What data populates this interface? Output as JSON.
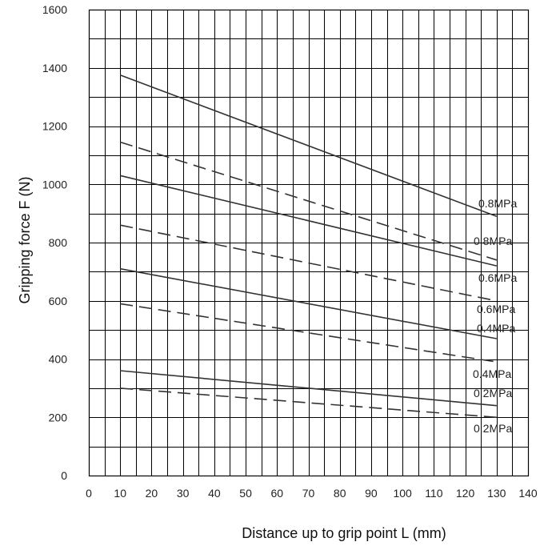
{
  "chart_data": {
    "type": "line",
    "xlabel": "Distance up to grip point L (mm)",
    "ylabel": "Gripping force F (N)",
    "xlim": [
      0,
      140
    ],
    "ylim": [
      0,
      1600
    ],
    "x_ticks": [
      "0",
      "10",
      "20",
      "30",
      "40",
      "50",
      "60",
      "70",
      "80",
      "90",
      "100",
      "110",
      "120",
      "130",
      "140"
    ],
    "y_ticks": [
      {
        "value": 0,
        "label": "0"
      },
      {
        "value": 200,
        "label": "200"
      },
      {
        "value": 400,
        "label": "400"
      },
      {
        "value": 600,
        "label": "600"
      },
      {
        "value": 800,
        "label": "800"
      },
      {
        "value": 1000,
        "label": "1000"
      },
      {
        "value": 1200,
        "label": "1200"
      },
      {
        "value": 1400,
        "label": "1400"
      },
      {
        "value": 1600,
        "label": "1600"
      }
    ],
    "grid": true,
    "series": [
      {
        "name": "0.8MPa",
        "style": "solid",
        "x": [
          10,
          130
        ],
        "y": [
          1375,
          890
        ]
      },
      {
        "name": "0.8MPa",
        "style": "dashed",
        "x": [
          10,
          130
        ],
        "y": [
          1145,
          740
        ]
      },
      {
        "name": "0.6MPa",
        "style": "solid",
        "x": [
          10,
          130
        ],
        "y": [
          1030,
          720
        ]
      },
      {
        "name": "0.6MPa",
        "style": "dashed",
        "x": [
          10,
          130
        ],
        "y": [
          860,
          600
        ]
      },
      {
        "name": "0.4MPa",
        "style": "solid",
        "x": [
          10,
          130
        ],
        "y": [
          710,
          470
        ]
      },
      {
        "name": "0.4MPa",
        "style": "dashed",
        "x": [
          10,
          130
        ],
        "y": [
          590,
          390
        ]
      },
      {
        "name": "0.2MPa",
        "style": "solid",
        "x": [
          10,
          130
        ],
        "y": [
          360,
          240
        ]
      },
      {
        "name": "0.2MPa",
        "style": "dashed",
        "x": [
          10,
          130
        ],
        "y": [
          300,
          200
        ]
      }
    ]
  }
}
